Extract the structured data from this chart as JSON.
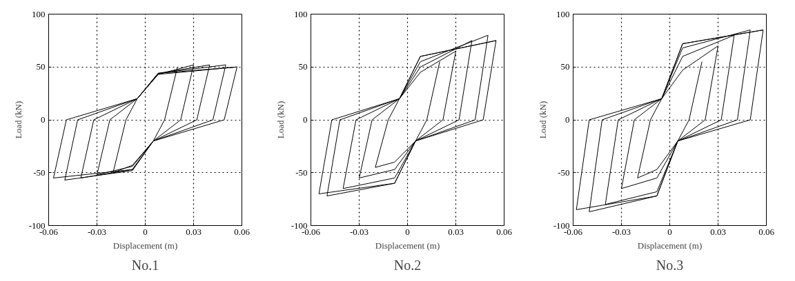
{
  "chart_data": [
    {
      "type": "line",
      "title": "No.1",
      "xlabel": "Displacement (m)",
      "ylabel": "Load (kN)",
      "xlim": [
        -0.06,
        0.06
      ],
      "ylim": [
        -100,
        100
      ],
      "xticks": [
        -0.06,
        -0.03,
        0,
        0.03,
        0.06
      ],
      "yticks": [
        -100,
        -50,
        0,
        50,
        100
      ],
      "grid": true,
      "series": [
        {
          "color": "#000000",
          "x": [
            0.02,
            0.012,
            0.005,
            -0.008,
            -0.02,
            -0.012,
            -0.005,
            0.008,
            0.03,
            0.022,
            0.005,
            -0.008,
            -0.03,
            -0.022,
            -0.005,
            0.008,
            0.04,
            0.032,
            0.005,
            -0.008,
            -0.04,
            -0.032,
            -0.005,
            0.008,
            0.05,
            0.042,
            0.005,
            -0.008,
            -0.05,
            -0.042,
            -0.005,
            0.008,
            0.057,
            0.049,
            0.005,
            -0.008,
            -0.057,
            -0.049,
            -0.005,
            0.008,
            0.057
          ],
          "values": [
            50,
            0,
            -20,
            -43,
            -50,
            0,
            20,
            43,
            52,
            0,
            -20,
            -44,
            -52,
            0,
            20,
            44,
            52,
            0,
            -20,
            -47,
            -55,
            0,
            20,
            44,
            52,
            0,
            -20,
            -48,
            -57,
            0,
            20,
            44,
            50,
            0,
            -20,
            -47,
            -55,
            0,
            20,
            43,
            50
          ]
        }
      ]
    },
    {
      "type": "line",
      "title": "No.2",
      "xlabel": "Displacement (m)",
      "ylabel": "Load (kN)",
      "xlim": [
        -0.06,
        0.06
      ],
      "ylim": [
        -100,
        100
      ],
      "xticks": [
        -0.06,
        -0.03,
        0,
        0.03,
        0.06
      ],
      "yticks": [
        -100,
        -50,
        0,
        50,
        100
      ],
      "grid": true,
      "series": [
        {
          "color": "#000000",
          "x": [
            0.02,
            0.012,
            0.005,
            -0.008,
            -0.02,
            -0.012,
            -0.005,
            0.008,
            0.03,
            0.022,
            0.005,
            -0.008,
            -0.03,
            -0.022,
            -0.005,
            0.008,
            0.04,
            0.032,
            0.005,
            -0.008,
            -0.04,
            -0.032,
            -0.005,
            0.008,
            0.05,
            0.042,
            0.005,
            -0.008,
            -0.05,
            -0.042,
            -0.005,
            0.008,
            0.055,
            0.047,
            0.005,
            -0.008,
            -0.055,
            -0.047,
            -0.005,
            0.008,
            0.055
          ],
          "values": [
            55,
            0,
            -20,
            -40,
            -45,
            0,
            20,
            45,
            65,
            0,
            -20,
            -47,
            -55,
            0,
            20,
            50,
            75,
            0,
            -20,
            -55,
            -65,
            0,
            20,
            55,
            80,
            0,
            -20,
            -60,
            -72,
            0,
            20,
            60,
            75,
            0,
            -20,
            -60,
            -70,
            0,
            20,
            60,
            75
          ]
        }
      ]
    },
    {
      "type": "line",
      "title": "No.3",
      "xlabel": "Displacement (m)",
      "ylabel": "Load (kN)",
      "xlim": [
        -0.06,
        0.06
      ],
      "ylim": [
        -100,
        100
      ],
      "xticks": [
        -0.06,
        -0.03,
        0,
        0.03,
        0.06
      ],
      "yticks": [
        -100,
        -50,
        0,
        50,
        100
      ],
      "grid": true,
      "series": [
        {
          "color": "#000000",
          "x": [
            0.02,
            0.012,
            0.005,
            -0.008,
            -0.02,
            -0.012,
            -0.005,
            0.008,
            0.03,
            0.022,
            0.005,
            -0.008,
            -0.03,
            -0.022,
            -0.005,
            0.008,
            0.04,
            0.032,
            0.005,
            -0.008,
            -0.04,
            -0.032,
            -0.005,
            0.008,
            0.05,
            0.042,
            0.005,
            -0.008,
            -0.05,
            -0.042,
            -0.005,
            0.008,
            0.058,
            0.05,
            0.005,
            -0.008,
            -0.058,
            -0.05,
            -0.005,
            0.008,
            0.058
          ],
          "values": [
            55,
            0,
            -20,
            -47,
            -55,
            0,
            20,
            47,
            70,
            0,
            -20,
            -55,
            -65,
            0,
            20,
            60,
            80,
            0,
            -20,
            -68,
            -80,
            0,
            20,
            68,
            85,
            0,
            -20,
            -72,
            -87,
            0,
            20,
            72,
            85,
            0,
            -20,
            -72,
            -85,
            0,
            20,
            72,
            85
          ]
        }
      ]
    }
  ]
}
